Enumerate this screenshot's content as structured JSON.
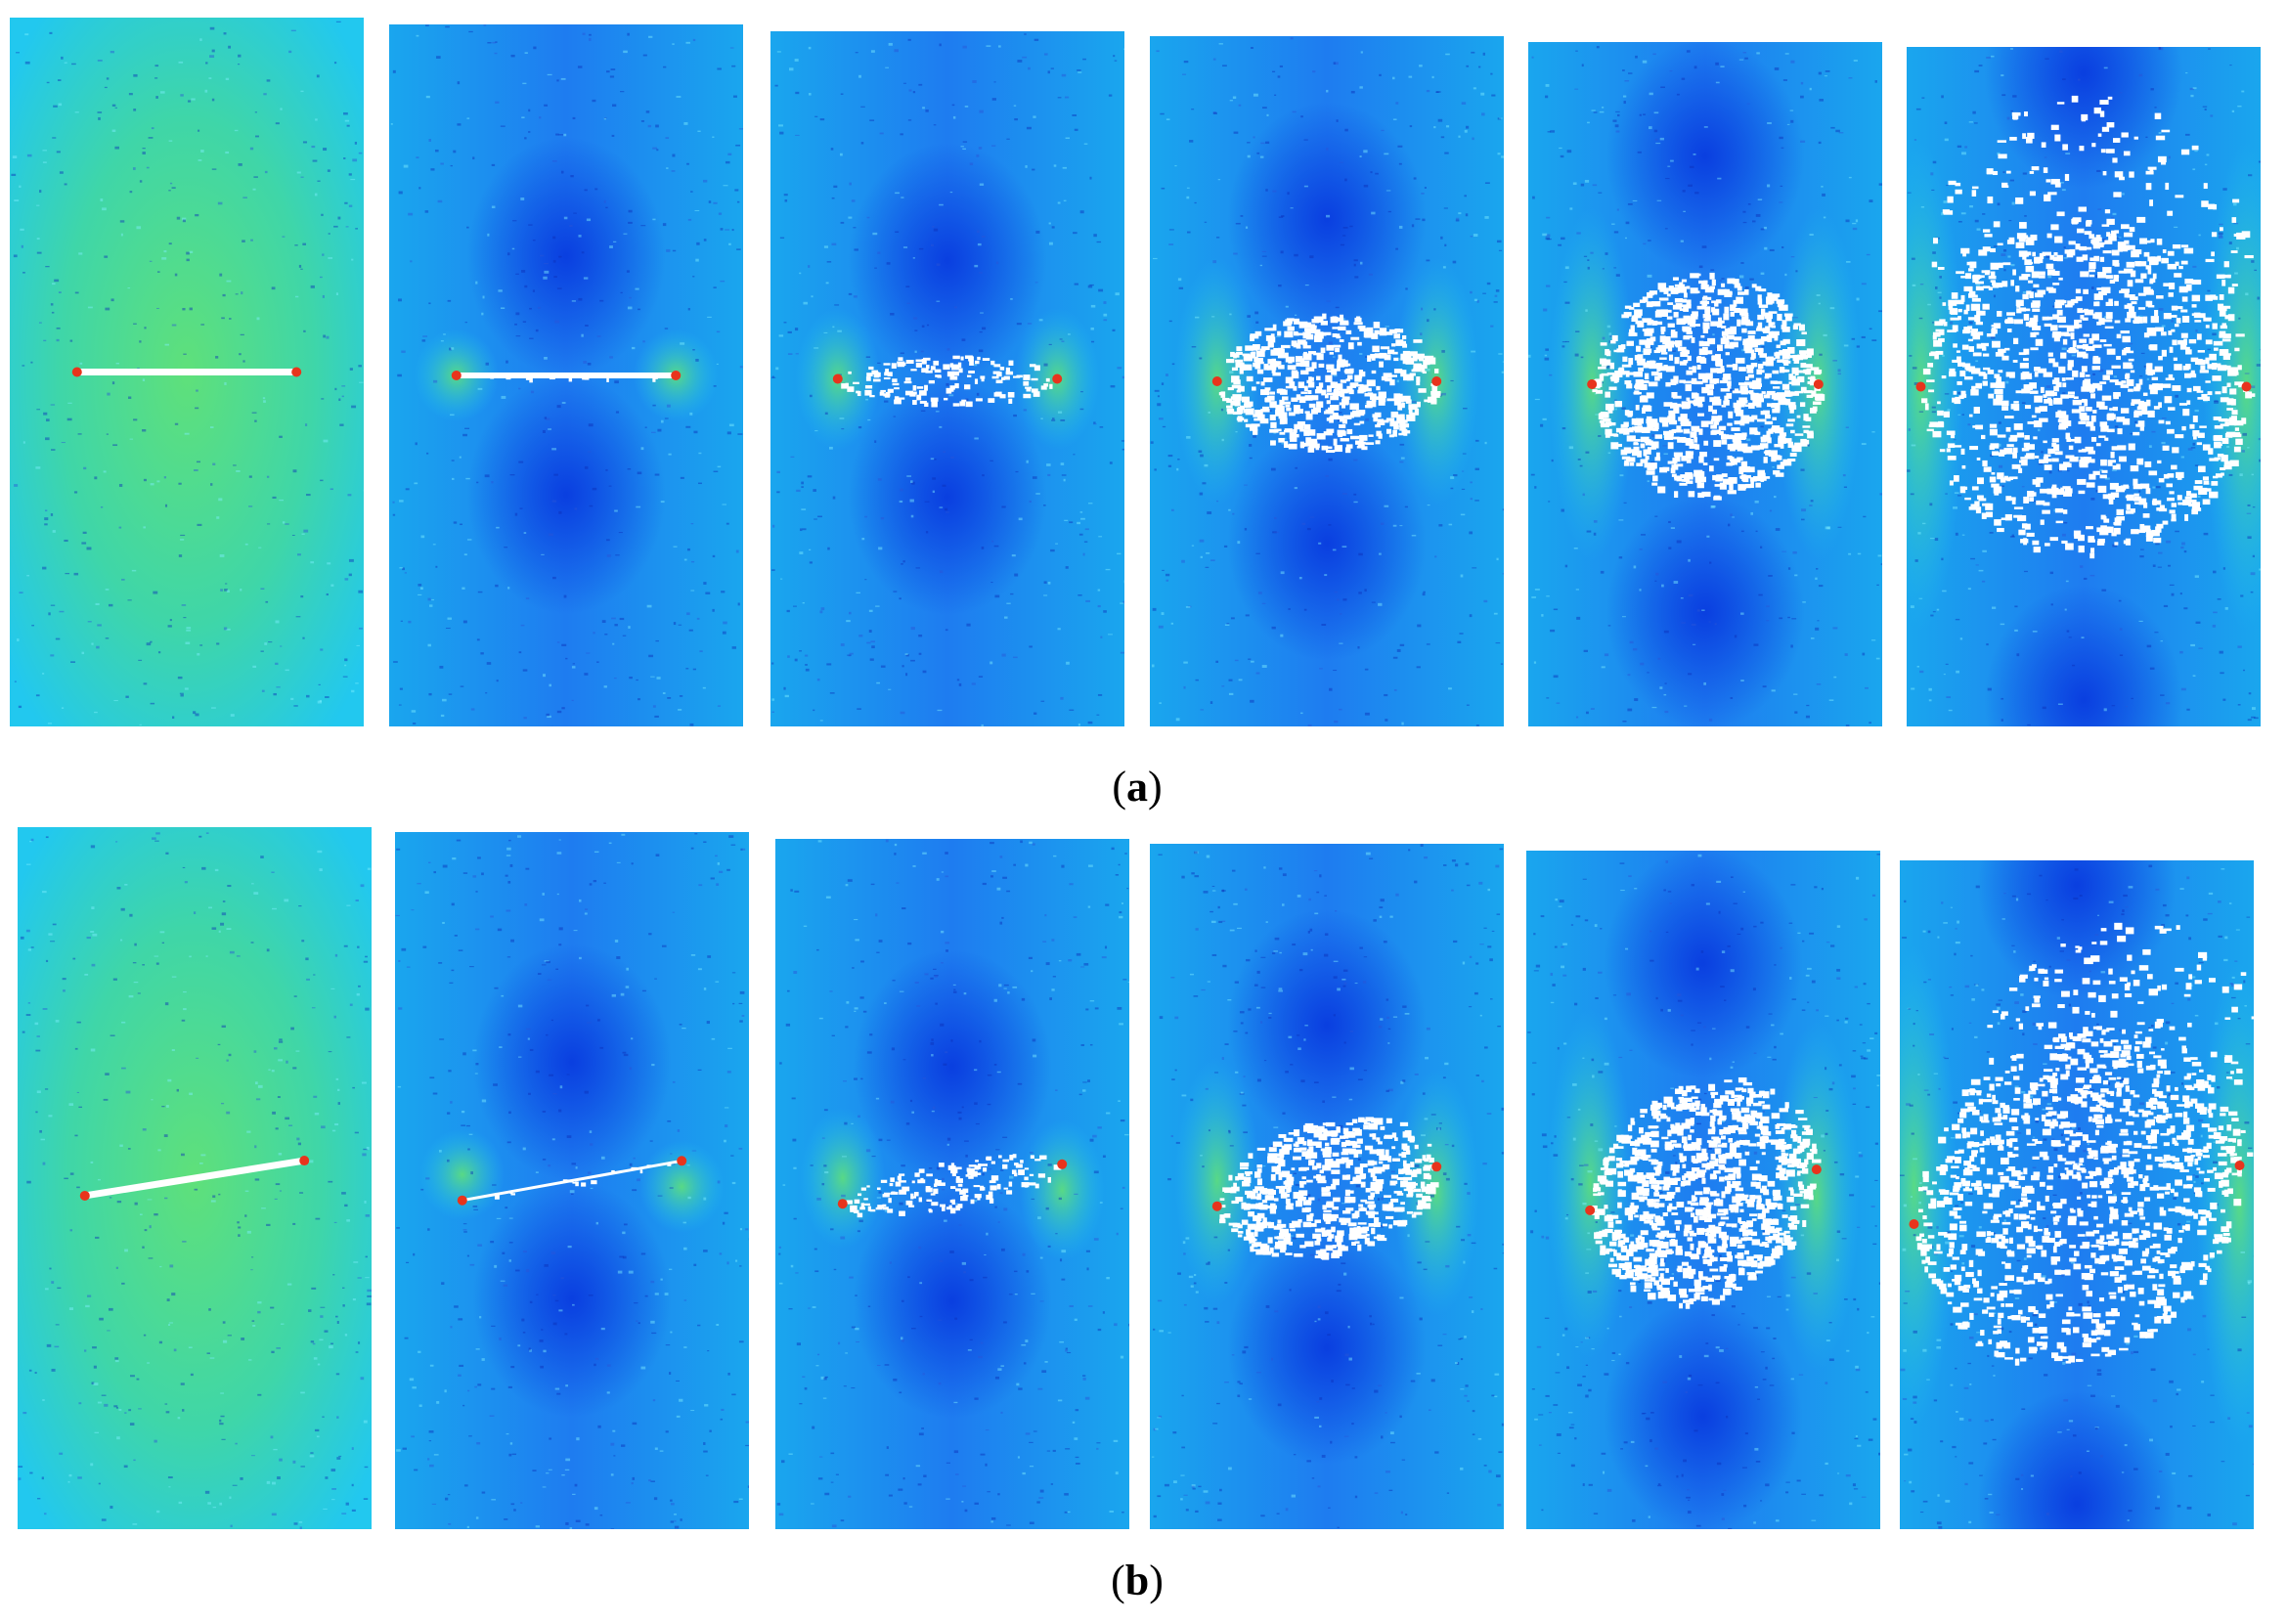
{
  "figure": {
    "rows": [
      {
        "caption_open": "(",
        "caption_letter": "a",
        "caption_close": ")",
        "crack_inclination": "horizontal",
        "stages": [
          {
            "stage": 1,
            "background": "green-cyan",
            "damage": "none"
          },
          {
            "stage": 2,
            "background": "blue",
            "damage": "tip"
          },
          {
            "stage": 3,
            "background": "blue",
            "damage": "small"
          },
          {
            "stage": 4,
            "background": "blue",
            "damage": "medium"
          },
          {
            "stage": 5,
            "background": "blue",
            "damage": "large"
          },
          {
            "stage": 6,
            "background": "blue",
            "damage": "failure"
          }
        ]
      },
      {
        "caption_open": "(",
        "caption_letter": "b",
        "caption_close": ")",
        "crack_inclination": "inclined",
        "stages": [
          {
            "stage": 1,
            "background": "green-cyan",
            "damage": "none"
          },
          {
            "stage": 2,
            "background": "blue",
            "damage": "tip"
          },
          {
            "stage": 3,
            "background": "blue",
            "damage": "small"
          },
          {
            "stage": 4,
            "background": "blue",
            "damage": "medium"
          },
          {
            "stage": 5,
            "background": "blue",
            "damage": "large"
          },
          {
            "stage": 6,
            "background": "blue",
            "damage": "failure"
          }
        ]
      }
    ],
    "colors": {
      "deep_blue": "#0a3fe0",
      "blue": "#1e7cf0",
      "cyan": "#22c8ef",
      "green": "#5fe07a",
      "damage_white": "#ffffff",
      "tip_red": "#e8341c"
    }
  }
}
